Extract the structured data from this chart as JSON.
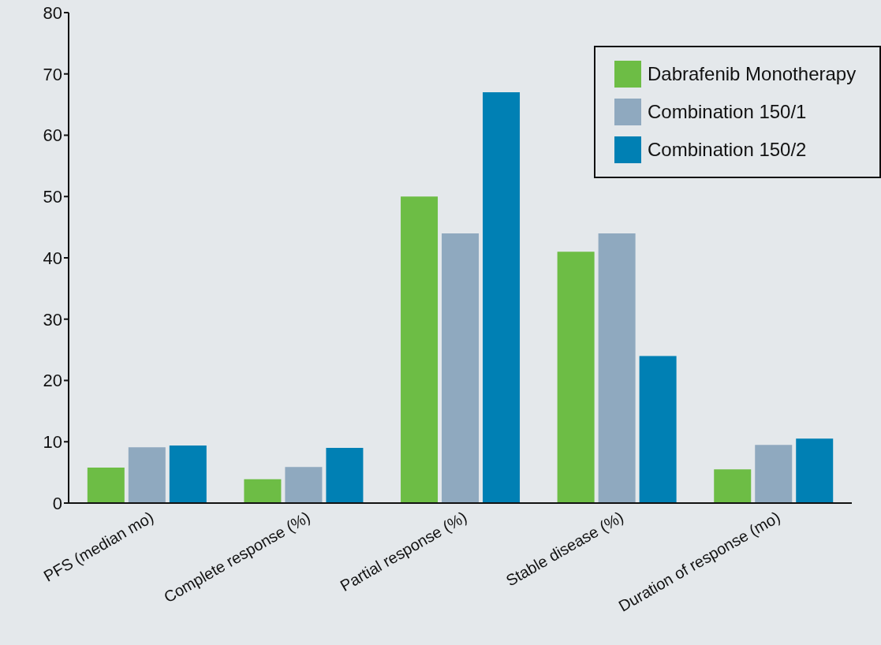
{
  "chart_data": {
    "type": "bar",
    "categories": [
      "PFS (median mo)",
      "Complete response (%)",
      "Partial response (%)",
      "Stable disease (%)",
      "Duration of response (mo)"
    ],
    "series": [
      {
        "name": "Dabrafenib Monotherapy",
        "color": "#6dbd45",
        "values": [
          5.8,
          3.9,
          50,
          41,
          5.5
        ]
      },
      {
        "name": "Combination 150/1",
        "color": "#8fa9bf",
        "values": [
          9.1,
          5.9,
          44,
          44,
          9.5
        ]
      },
      {
        "name": "Combination 150/2",
        "color": "#0080b4",
        "values": [
          9.4,
          9.0,
          67,
          24,
          10.5
        ]
      }
    ],
    "ylim": [
      0,
      80
    ],
    "yticks": [
      0,
      10,
      20,
      30,
      40,
      50,
      60,
      70,
      80
    ],
    "grid": false,
    "legend": "top right"
  }
}
